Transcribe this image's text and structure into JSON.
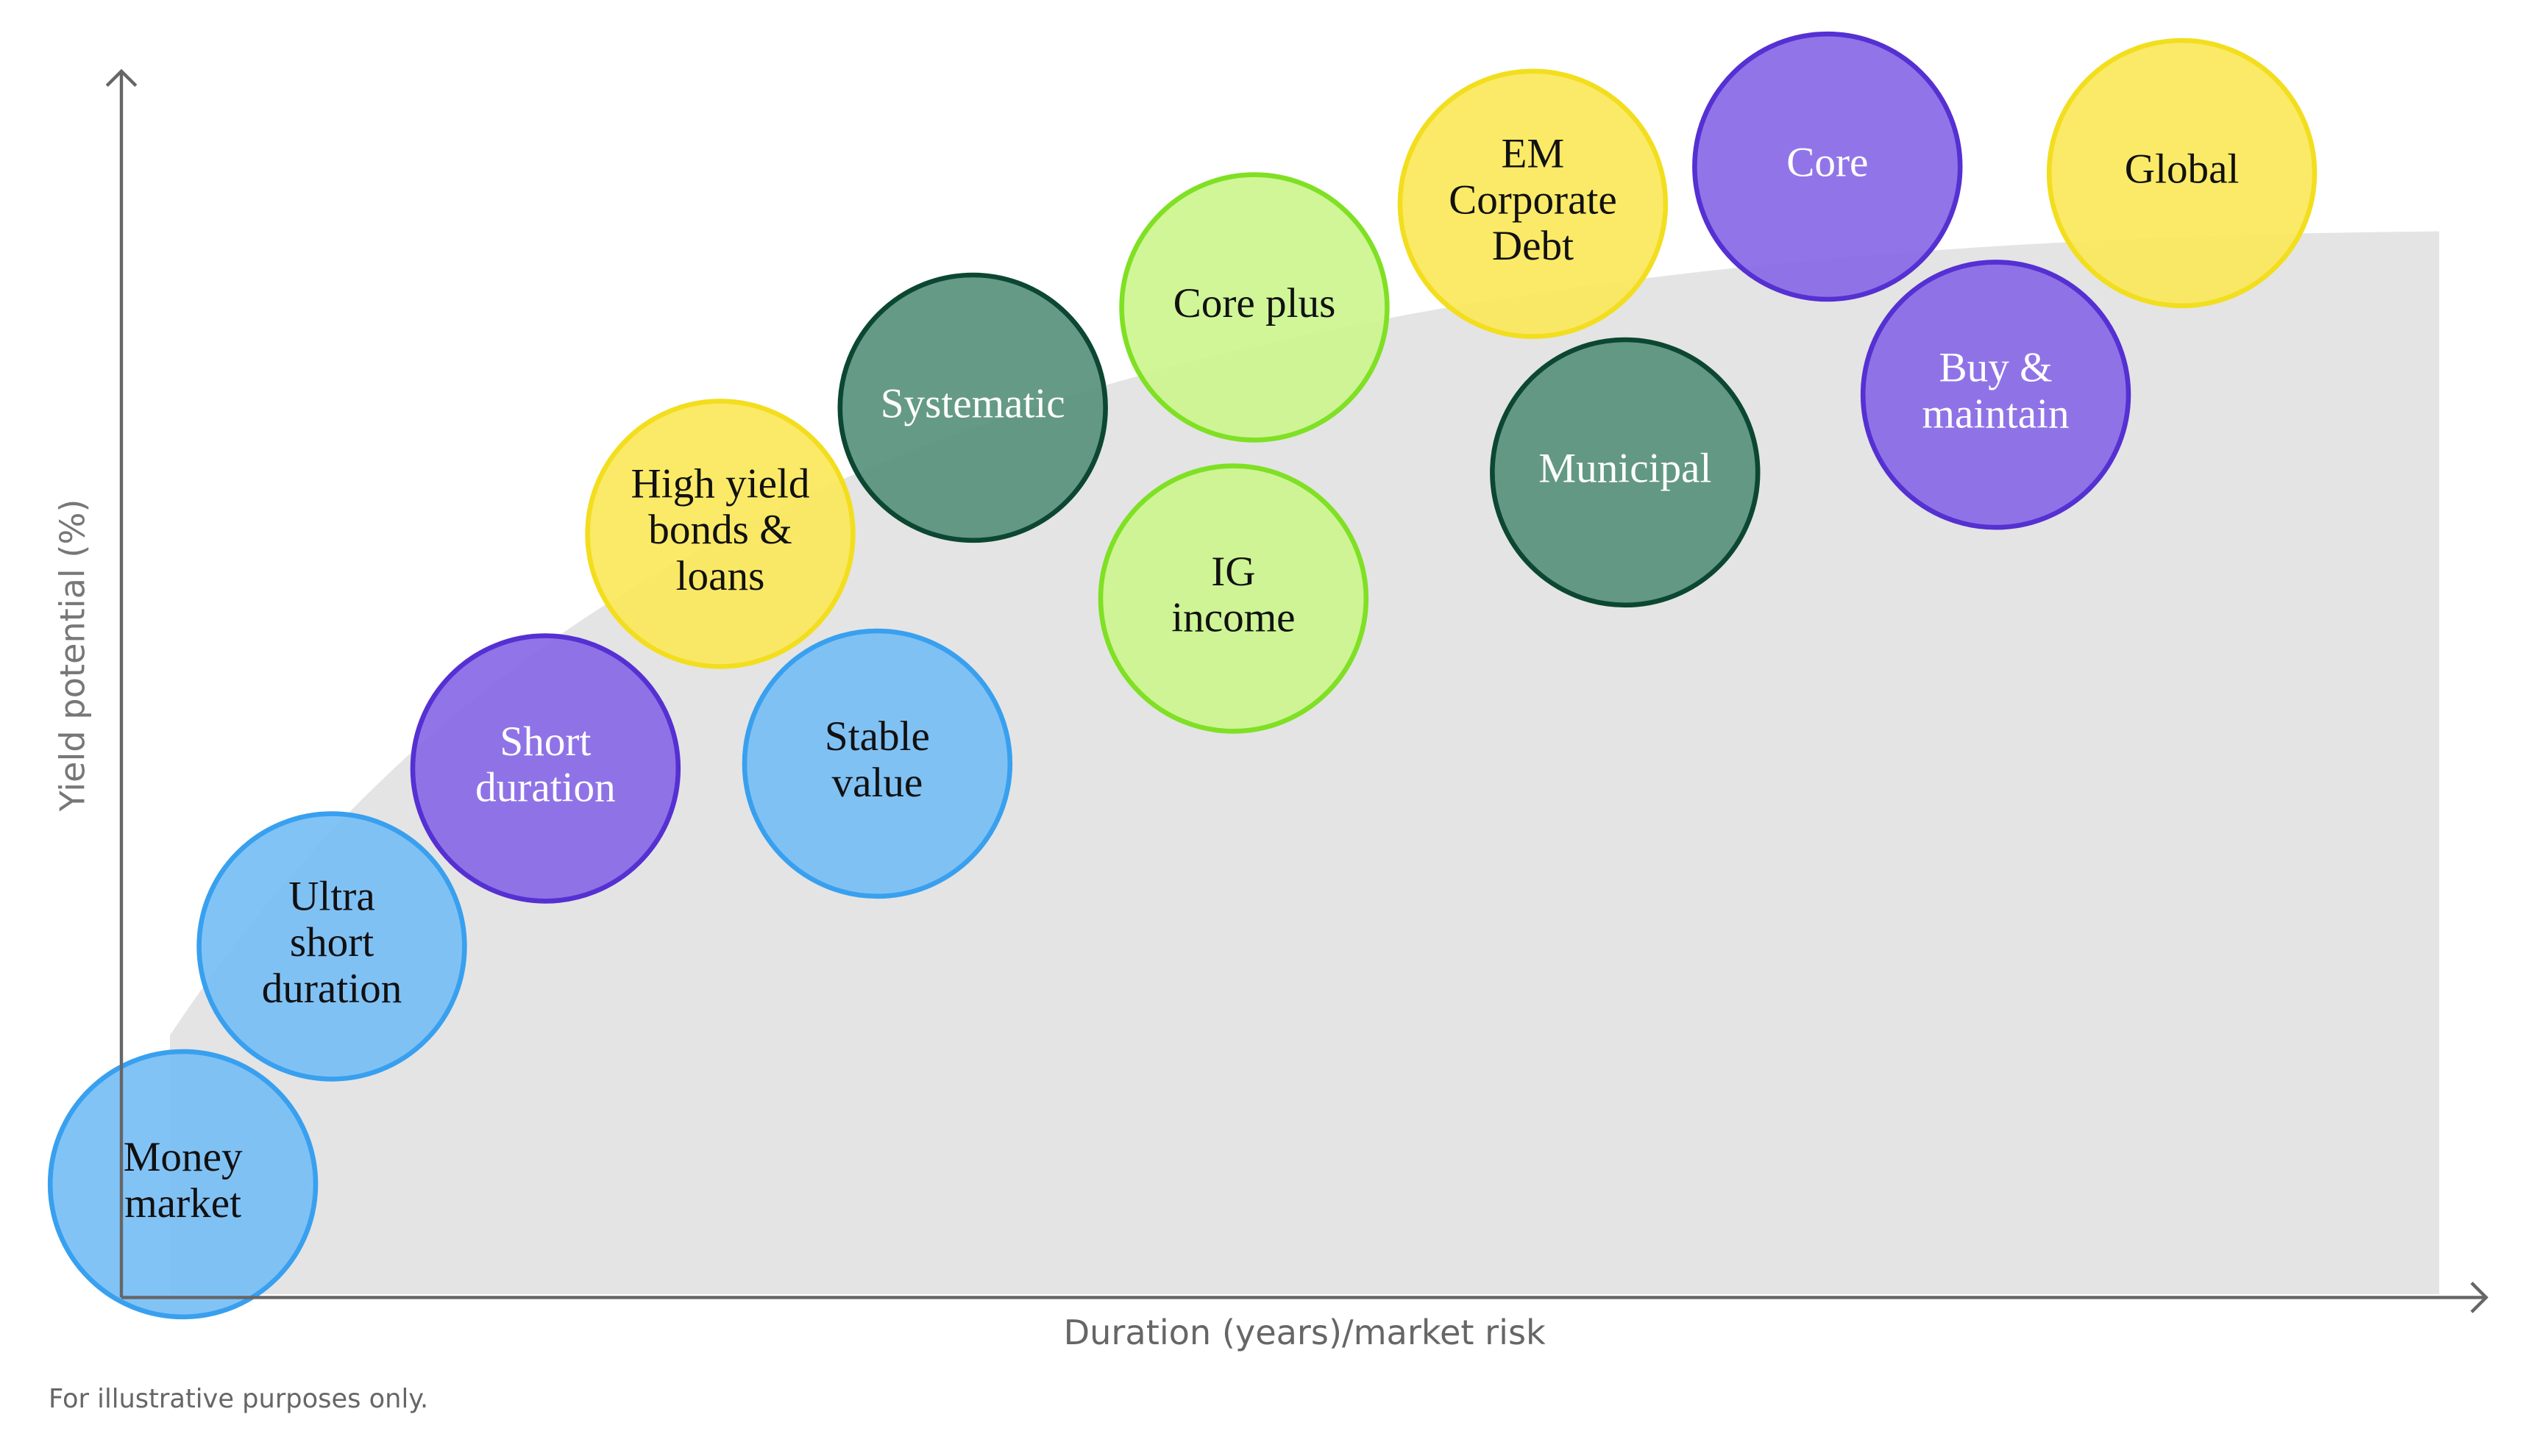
{
  "axes": {
    "y_label": "Yield potential (%)",
    "x_label": "Duration (years)/market risk"
  },
  "nodes": [
    {
      "label": [
        "Money",
        "market"
      ]
    },
    {
      "label": [
        "Ultra",
        "short",
        "duration"
      ]
    },
    {
      "label": [
        "Short",
        "duration"
      ]
    },
    {
      "label": [
        "High yield",
        "bonds &",
        "loans"
      ]
    },
    {
      "label": [
        "Stable",
        "value"
      ]
    },
    {
      "label": [
        "Systematic"
      ]
    },
    {
      "label": [
        "Core plus"
      ]
    },
    {
      "label": [
        "IG",
        "income"
      ]
    },
    {
      "label": [
        "EM",
        "Corporate",
        "Debt"
      ]
    },
    {
      "label": [
        "Municipal"
      ]
    },
    {
      "label": [
        "Core"
      ]
    },
    {
      "label": [
        "Buy &",
        "maintain"
      ]
    },
    {
      "label": [
        "Global"
      ]
    }
  ],
  "footnote": "For illustrative purposes only."
}
